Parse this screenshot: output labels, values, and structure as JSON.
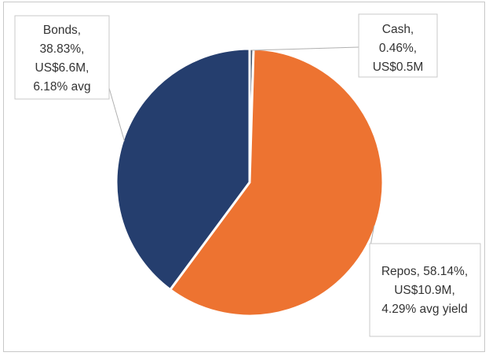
{
  "chart_data": {
    "type": "pie",
    "title": "",
    "slices": [
      {
        "name": "Cash",
        "value": 0.46,
        "color": "#44546A",
        "label_lines": [
          "Cash,",
          "0.46%,",
          "US$0.5M"
        ]
      },
      {
        "name": "Repos",
        "value": 58.14,
        "color": "#ED7331",
        "label_lines": [
          "Repos, 58.14%,",
          "US$10.9M,",
          "4.29% avg yield"
        ]
      },
      {
        "name": "Bonds",
        "value": 38.83,
        "color": "#253E6E",
        "label_lines": [
          "Bonds,",
          "38.83%,",
          "US$6.6M,",
          "6.18% avg"
        ]
      }
    ],
    "legend": "none",
    "slice_border_color": "#ffffff"
  }
}
